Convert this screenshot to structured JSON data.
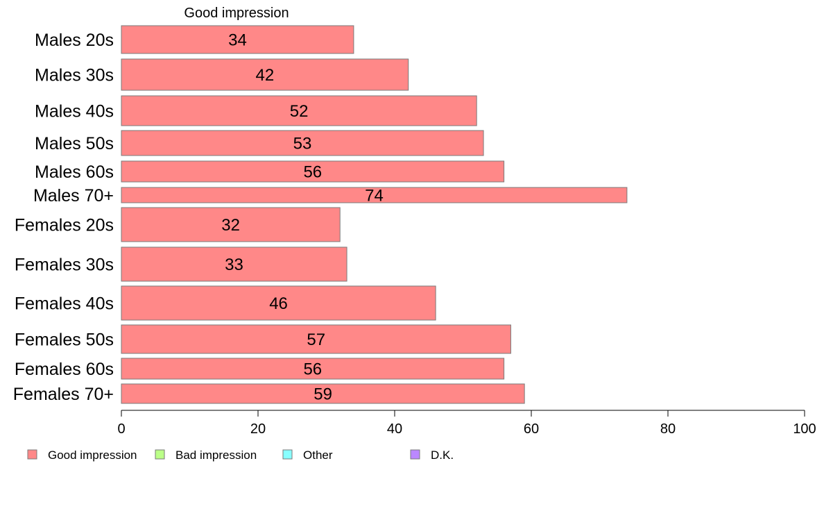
{
  "chart_data": {
    "type": "bar",
    "orientation": "horizontal",
    "stacked": true,
    "categories": [
      "Males 20s",
      "Males 30s",
      "Males 40s",
      "Males 50s",
      "Males 60s",
      "Males 70+",
      "Females 20s",
      "Females 30s",
      "Females 40s",
      "Females 50s",
      "Females 60s",
      "Females 70+"
    ],
    "series": [
      {
        "name": "Good impression",
        "color": "#FF8888",
        "values": [
          34,
          42,
          52,
          53,
          56,
          74,
          32,
          33,
          46,
          57,
          56,
          59
        ]
      }
    ],
    "series_title": "Good impression",
    "xlim": [
      0,
      100
    ],
    "x_ticks": [
      "0",
      "20",
      "40",
      "60",
      "80",
      "100"
    ],
    "grid": false,
    "legend": {
      "position": "bottom-left",
      "items": [
        {
          "label": "Good impression",
          "color": "#FF8888"
        },
        {
          "label": "Bad impression",
          "color": "#BBFF88"
        },
        {
          "label": "Other",
          "color": "#88FFFF"
        },
        {
          "label": "D.K.",
          "color": "#BB88FF"
        }
      ]
    }
  }
}
